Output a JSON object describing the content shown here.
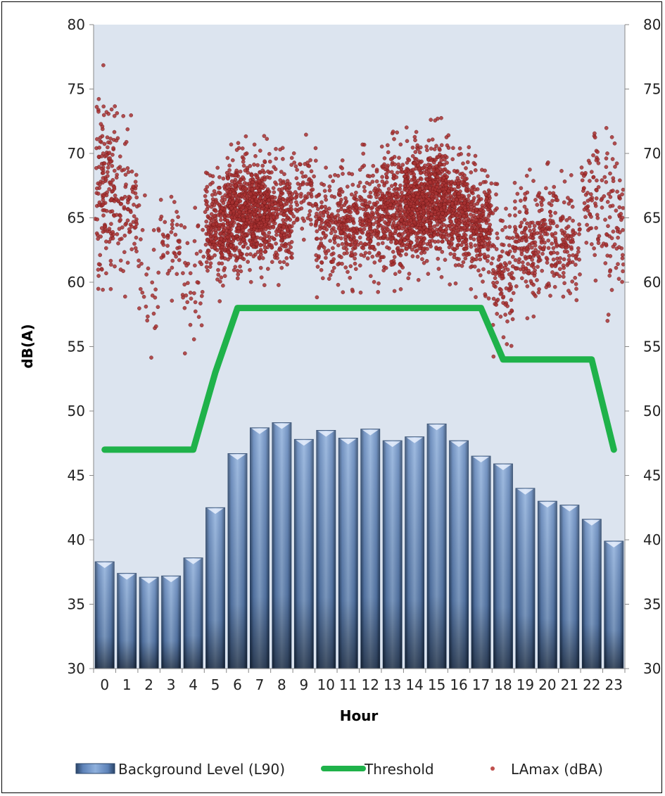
{
  "chart_data": {
    "type": "bar",
    "title": "",
    "xlabel": "Hour",
    "ylabel": "dB(A)",
    "ylim": [
      30,
      80
    ],
    "yticks": [
      "30",
      "35",
      "40",
      "45",
      "50",
      "55",
      "60",
      "65",
      "70",
      "75",
      "80"
    ],
    "y2ticks": [
      "30",
      "35",
      "40",
      "45",
      "50",
      "55",
      "60",
      "65",
      "70",
      "75",
      "80"
    ],
    "categories": [
      "0",
      "1",
      "2",
      "3",
      "4",
      "5",
      "6",
      "7",
      "8",
      "9",
      "10",
      "11",
      "12",
      "13",
      "14",
      "15",
      "16",
      "17",
      "18",
      "19",
      "20",
      "21",
      "22",
      "23"
    ],
    "grid": false,
    "legend_position": "bottom",
    "series": [
      {
        "name": "Background Level (L90)",
        "kind": "bar",
        "color": "#4a6fa5",
        "values": [
          38.3,
          37.4,
          37.1,
          37.2,
          38.6,
          42.5,
          46.7,
          48.7,
          49.1,
          47.8,
          48.5,
          47.9,
          48.6,
          47.7,
          48.0,
          49.0,
          47.7,
          46.5,
          45.9,
          44.0,
          43.0,
          42.7,
          41.6,
          39.9
        ]
      },
      {
        "name": "Threshold",
        "kind": "line",
        "color": "#1fb24a",
        "x": [
          0,
          1,
          2,
          3,
          4,
          5,
          6,
          7,
          8,
          9,
          10,
          11,
          12,
          13,
          14,
          15,
          16,
          17,
          18,
          19,
          20,
          21,
          22,
          23
        ],
        "values": [
          47,
          47,
          47,
          47,
          47,
          53,
          58,
          58,
          58,
          58,
          58,
          58,
          58,
          58,
          58,
          58,
          58,
          58,
          54,
          54,
          54,
          54,
          54,
          47
        ]
      },
      {
        "name": "LAmax (dBA)",
        "kind": "scatter",
        "color": "#a52a2a",
        "hourly_clusters": [
          {
            "hour": 0,
            "center": 67.5,
            "spread": 5.5,
            "count": 160
          },
          {
            "hour": 1,
            "center": 66.0,
            "spread": 4.0,
            "count": 90
          },
          {
            "hour": 2,
            "center": 60.0,
            "spread": 4.0,
            "count": 30
          },
          {
            "hour": 3,
            "center": 63.5,
            "spread": 3.0,
            "count": 45
          },
          {
            "hour": 4,
            "center": 60.0,
            "spread": 4.0,
            "count": 40
          },
          {
            "hour": 5,
            "center": 64.0,
            "spread": 2.8,
            "count": 220
          },
          {
            "hour": 6,
            "center": 65.5,
            "spread": 3.0,
            "count": 400
          },
          {
            "hour": 7,
            "center": 65.5,
            "spread": 3.0,
            "count": 380
          },
          {
            "hour": 8,
            "center": 65.0,
            "spread": 2.8,
            "count": 200
          },
          {
            "hour": 9,
            "center": 67.0,
            "spread": 3.0,
            "count": 70
          },
          {
            "hour": 10,
            "center": 64.5,
            "spread": 3.0,
            "count": 120
          },
          {
            "hour": 11,
            "center": 64.5,
            "spread": 2.8,
            "count": 170
          },
          {
            "hour": 12,
            "center": 65.0,
            "spread": 3.0,
            "count": 180
          },
          {
            "hour": 13,
            "center": 65.5,
            "spread": 3.2,
            "count": 260
          },
          {
            "hour": 14,
            "center": 66.0,
            "spread": 3.2,
            "count": 420
          },
          {
            "hour": 15,
            "center": 66.5,
            "spread": 3.2,
            "count": 420
          },
          {
            "hour": 16,
            "center": 65.5,
            "spread": 3.0,
            "count": 280
          },
          {
            "hour": 17,
            "center": 64.5,
            "spread": 3.0,
            "count": 220
          },
          {
            "hour": 18,
            "center": 61.0,
            "spread": 3.5,
            "count": 110
          },
          {
            "hour": 19,
            "center": 63.0,
            "spread": 3.0,
            "count": 130
          },
          {
            "hour": 20,
            "center": 63.5,
            "spread": 3.0,
            "count": 120
          },
          {
            "hour": 21,
            "center": 63.0,
            "spread": 3.0,
            "count": 90
          },
          {
            "hour": 22,
            "center": 66.5,
            "spread": 3.5,
            "count": 70
          },
          {
            "hour": 23,
            "center": 65.0,
            "spread": 4.5,
            "count": 80
          }
        ]
      }
    ],
    "legend": [
      {
        "label": "Background Level (L90)",
        "symbol": "bar"
      },
      {
        "label": "Threshold",
        "symbol": "line"
      },
      {
        "label": "LAmax (dBA)",
        "symbol": "dot"
      }
    ],
    "colors": {
      "plot_background": "#dce4ef",
      "bar": "#4a6fa5",
      "threshold": "#1fb24a",
      "scatter": "#a52a2a"
    }
  }
}
